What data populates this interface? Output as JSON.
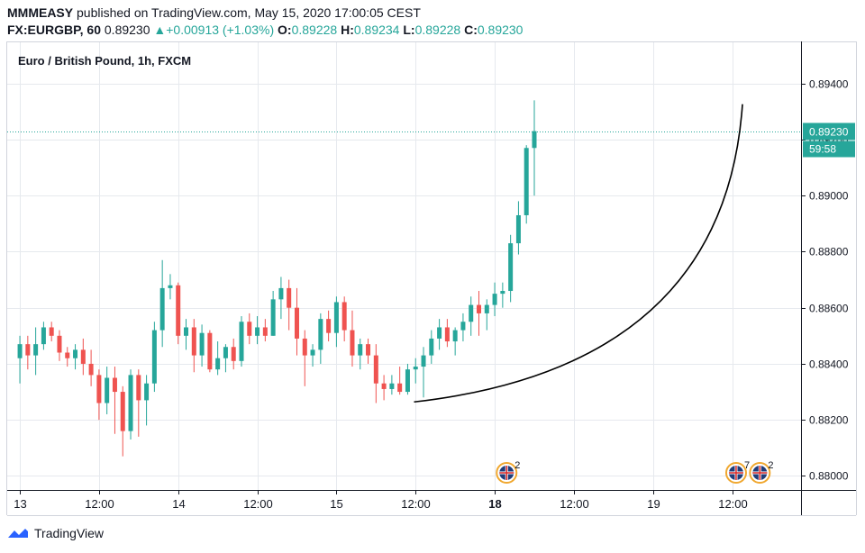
{
  "header": {
    "author": "MMMEASY",
    "published_text": "published on TradingView.com, May 15, 2020 17:00:05 CEST",
    "symbol": "FX:EURGBP, 60",
    "last": "0.89230",
    "change": "+0.00913 (+1.03%)",
    "o_label": "O:",
    "o_value": "0.89228",
    "h_label": "H:",
    "h_value": "0.89234",
    "l_label": "L:",
    "l_value": "0.89228",
    "c_label": "C:",
    "c_value": "0.89230"
  },
  "footer": {
    "brand": "TradingView"
  },
  "colors": {
    "up": "#26a69a",
    "down": "#ef5350",
    "grid": "#e6e9ee",
    "axis": "#131722"
  },
  "chart_data": {
    "type": "candlestick",
    "title": "Euro / British Pound, 1h, FXCM",
    "y_ticks": [
      0.894,
      0.892,
      0.89,
      0.888,
      0.886,
      0.884,
      0.882,
      0.88
    ],
    "y_tick_labels": [
      "0.89400",
      "0.89200",
      "0.89000",
      "0.88800",
      "0.88600",
      "0.88400",
      "0.88200",
      "0.88000"
    ],
    "ylim": [
      0.8795,
      0.8955
    ],
    "x_ticks": [
      0,
      10,
      20,
      30,
      40,
      50,
      60,
      70,
      80,
      90
    ],
    "x_tick_labels": [
      "13",
      "12:00",
      "14",
      "12:00",
      "15",
      "12:00",
      "18",
      "12:00",
      "19",
      "12:00"
    ],
    "x_bold_ticks": [
      "18"
    ],
    "xlim": [
      -1.6,
      98.7
    ],
    "current_price": 0.8923,
    "current_price_label": "0.89230",
    "countdown": "59:58",
    "candles": [
      [
        0.8842,
        0.885,
        0.8833,
        0.8847
      ],
      [
        0.8847,
        0.885,
        0.8838,
        0.8843
      ],
      [
        0.8843,
        0.8853,
        0.8836,
        0.8847
      ],
      [
        0.8847,
        0.8855,
        0.8845,
        0.8853
      ],
      [
        0.8853,
        0.8855,
        0.8848,
        0.885
      ],
      [
        0.885,
        0.8852,
        0.8841,
        0.8844
      ],
      [
        0.8844,
        0.8846,
        0.8839,
        0.8842
      ],
      [
        0.8842,
        0.8847,
        0.8838,
        0.8845
      ],
      [
        0.8845,
        0.8849,
        0.8836,
        0.884
      ],
      [
        0.884,
        0.8845,
        0.8832,
        0.8836
      ],
      [
        0.8836,
        0.8838,
        0.882,
        0.8826
      ],
      [
        0.8826,
        0.8839,
        0.8822,
        0.8835
      ],
      [
        0.8835,
        0.8839,
        0.8815,
        0.883
      ],
      [
        0.883,
        0.8832,
        0.8807,
        0.8816
      ],
      [
        0.8816,
        0.8838,
        0.8813,
        0.8836
      ],
      [
        0.8836,
        0.8838,
        0.8814,
        0.8827
      ],
      [
        0.8827,
        0.8836,
        0.8818,
        0.8833
      ],
      [
        0.8833,
        0.8855,
        0.883,
        0.8852
      ],
      [
        0.8852,
        0.8877,
        0.8846,
        0.8867
      ],
      [
        0.8867,
        0.8872,
        0.8863,
        0.8868
      ],
      [
        0.8868,
        0.8869,
        0.8847,
        0.885
      ],
      [
        0.885,
        0.8856,
        0.8845,
        0.8853
      ],
      [
        0.8853,
        0.8856,
        0.8837,
        0.8843
      ],
      [
        0.8843,
        0.8854,
        0.8839,
        0.8851
      ],
      [
        0.8851,
        0.8852,
        0.8837,
        0.8838
      ],
      [
        0.8838,
        0.8848,
        0.8836,
        0.8842
      ],
      [
        0.8842,
        0.8847,
        0.8837,
        0.8846
      ],
      [
        0.8846,
        0.8849,
        0.8838,
        0.8841
      ],
      [
        0.8841,
        0.8857,
        0.8839,
        0.8855
      ],
      [
        0.8855,
        0.8858,
        0.8847,
        0.885
      ],
      [
        0.885,
        0.8857,
        0.8847,
        0.8853
      ],
      [
        0.8853,
        0.8856,
        0.8848,
        0.885
      ],
      [
        0.885,
        0.8866,
        0.885,
        0.8863
      ],
      [
        0.8863,
        0.8871,
        0.8856,
        0.8867
      ],
      [
        0.8867,
        0.887,
        0.8852,
        0.886
      ],
      [
        0.886,
        0.8867,
        0.8843,
        0.8849
      ],
      [
        0.8849,
        0.8852,
        0.8832,
        0.8843
      ],
      [
        0.8843,
        0.8847,
        0.8839,
        0.8845
      ],
      [
        0.8845,
        0.8858,
        0.884,
        0.8856
      ],
      [
        0.8856,
        0.8859,
        0.8848,
        0.8851
      ],
      [
        0.8851,
        0.8864,
        0.8846,
        0.8862
      ],
      [
        0.8862,
        0.8864,
        0.8848,
        0.8852
      ],
      [
        0.8852,
        0.8859,
        0.8839,
        0.8843
      ],
      [
        0.8843,
        0.8849,
        0.8838,
        0.8847
      ],
      [
        0.8847,
        0.8849,
        0.884,
        0.8843
      ],
      [
        0.8843,
        0.8847,
        0.8826,
        0.8833
      ],
      [
        0.8833,
        0.8836,
        0.8827,
        0.8831
      ],
      [
        0.8831,
        0.8836,
        0.8829,
        0.8833
      ],
      [
        0.8833,
        0.8839,
        0.8829,
        0.883
      ],
      [
        0.883,
        0.884,
        0.8829,
        0.8838
      ],
      [
        0.8838,
        0.8842,
        0.8833,
        0.8839
      ],
      [
        0.8839,
        0.8846,
        0.8828,
        0.8843
      ],
      [
        0.8843,
        0.8852,
        0.884,
        0.8849
      ],
      [
        0.8849,
        0.8856,
        0.8845,
        0.8853
      ],
      [
        0.8853,
        0.8856,
        0.8846,
        0.8848
      ],
      [
        0.8848,
        0.8853,
        0.8843,
        0.8852
      ],
      [
        0.8852,
        0.8858,
        0.8848,
        0.8855
      ],
      [
        0.8855,
        0.8864,
        0.885,
        0.8861
      ],
      [
        0.8861,
        0.8866,
        0.885,
        0.8858
      ],
      [
        0.8858,
        0.8863,
        0.8852,
        0.8861
      ],
      [
        0.8861,
        0.8869,
        0.8857,
        0.8865
      ],
      [
        0.8865,
        0.8869,
        0.886,
        0.8866
      ],
      [
        0.8866,
        0.8886,
        0.8862,
        0.8883
      ],
      [
        0.8883,
        0.8898,
        0.8879,
        0.8893
      ],
      [
        0.8893,
        0.8918,
        0.889,
        0.8917
      ],
      [
        0.8917,
        0.8934,
        0.89,
        0.8923
      ]
    ],
    "arc_annotation": {
      "start": [
        49.8,
        0.88264
      ],
      "control": [
        89.0,
        0.8839
      ],
      "end": [
        91.3,
        0.89326
      ]
    },
    "event_markers": [
      {
        "x": 61.5,
        "count": "2"
      },
      {
        "x": 90.5,
        "count": "7"
      },
      {
        "x": 93.5,
        "count": "2"
      }
    ]
  }
}
